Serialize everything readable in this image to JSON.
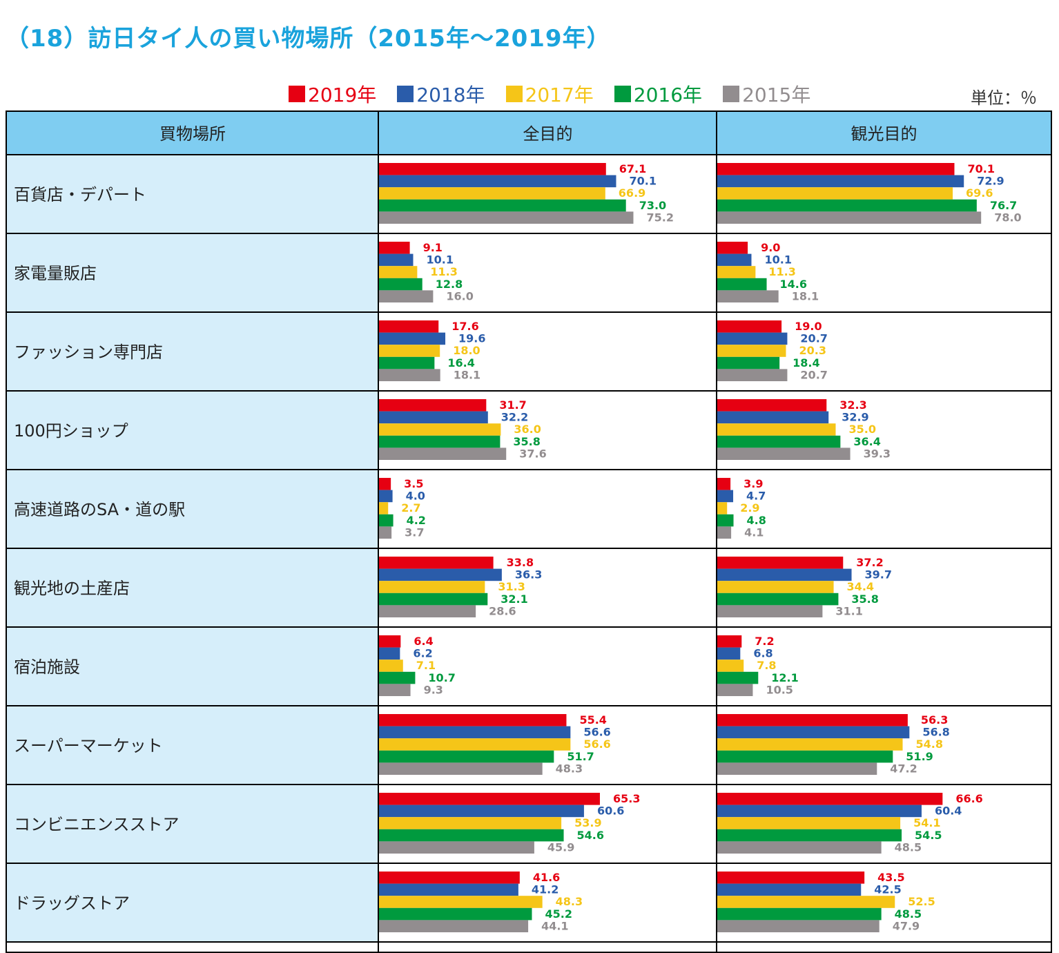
{
  "title": "（18）訪日タイ人の買い物場所（2015年～2019年）",
  "unit": "単位：％",
  "colors": {
    "2019": "#e60012",
    "2018": "#2a5caa",
    "2017": "#f5c518",
    "2016": "#009a3e",
    "2015": "#928d8f",
    "header_bg": "#7fcdf1",
    "label_bg": "#d6eefa"
  },
  "legend": [
    {
      "label": "2019年",
      "color": "#e60012"
    },
    {
      "label": "2018年",
      "color": "#2a5caa"
    },
    {
      "label": "2017年",
      "color": "#f5c518"
    },
    {
      "label": "2016年",
      "color": "#009a3e"
    },
    {
      "label": "2015年",
      "color": "#928d8f"
    }
  ],
  "chart_data": {
    "type": "bar",
    "orientation": "horizontal",
    "title": "（18）訪日タイ人の買い物場所（2015年～2019年）",
    "unit": "％",
    "columns": [
      "買物場所",
      "全目的",
      "観光目的"
    ],
    "series_names": [
      "2019年",
      "2018年",
      "2017年",
      "2016年",
      "2015年"
    ],
    "xlim": [
      0,
      100
    ],
    "categories": [
      {
        "name": "百貨店・デパート",
        "all": [
          67.1,
          70.1,
          66.9,
          73.0,
          75.2
        ],
        "sightseeing": [
          70.1,
          72.9,
          69.6,
          76.7,
          78.0
        ]
      },
      {
        "name": "家電量販店",
        "all": [
          9.1,
          10.1,
          11.3,
          12.8,
          16.0
        ],
        "sightseeing": [
          9.0,
          10.1,
          11.3,
          14.6,
          18.1
        ]
      },
      {
        "name": "ファッション専門店",
        "all": [
          17.6,
          19.6,
          18.0,
          16.4,
          18.1
        ],
        "sightseeing": [
          19.0,
          20.7,
          20.3,
          18.4,
          20.7
        ]
      },
      {
        "name": "100円ショップ",
        "all": [
          31.7,
          32.2,
          36.0,
          35.8,
          37.6
        ],
        "sightseeing": [
          32.3,
          32.9,
          35.0,
          36.4,
          39.3
        ]
      },
      {
        "name": "高速道路のSA・道の駅",
        "all": [
          3.5,
          4.0,
          2.7,
          4.2,
          3.7
        ],
        "sightseeing": [
          3.9,
          4.7,
          2.9,
          4.8,
          4.1
        ]
      },
      {
        "name": "観光地の土産店",
        "all": [
          33.8,
          36.3,
          31.3,
          32.1,
          28.6
        ],
        "sightseeing": [
          37.2,
          39.7,
          34.4,
          35.8,
          31.1
        ]
      },
      {
        "name": "宿泊施設",
        "all": [
          6.4,
          6.2,
          7.1,
          10.7,
          9.3
        ],
        "sightseeing": [
          7.2,
          6.8,
          7.8,
          12.1,
          10.5
        ]
      },
      {
        "name": "スーパーマーケット",
        "all": [
          55.4,
          56.6,
          56.6,
          51.7,
          48.3
        ],
        "sightseeing": [
          56.3,
          56.8,
          54.8,
          51.9,
          47.2
        ]
      },
      {
        "name": "コンビニエンスストア",
        "all": [
          65.3,
          60.6,
          53.9,
          54.6,
          45.9
        ],
        "sightseeing": [
          66.6,
          60.4,
          54.1,
          54.5,
          48.5
        ]
      },
      {
        "name": "ドラッグストア",
        "all": [
          41.6,
          41.2,
          48.3,
          45.2,
          44.1
        ],
        "sightseeing": [
          43.5,
          42.5,
          52.5,
          48.5,
          47.9
        ]
      }
    ]
  }
}
